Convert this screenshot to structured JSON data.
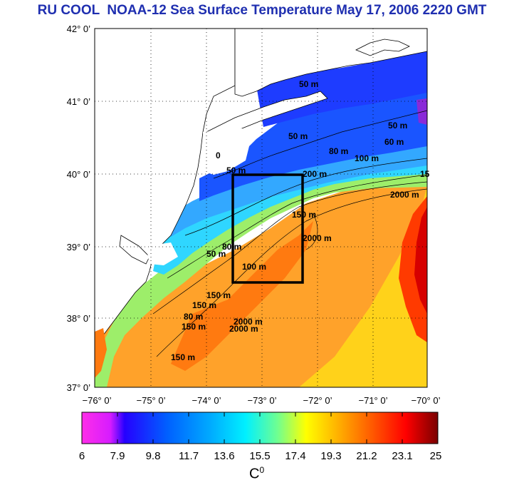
{
  "title": "RU COOL  NOAA-12 Sea Surface Temperature May 17, 2006 2220 GMT",
  "map": {
    "lon_range": [
      -76,
      -70
    ],
    "lat_range": [
      37,
      42
    ],
    "lon_ticks": [
      "−76° 0’",
      "−75° 0’",
      "−74° 0’",
      "−73° 0’",
      "−72° 0’",
      "−71° 0’",
      "−70° 0’"
    ],
    "lat_ticks": [
      "42° 0’",
      "41° 0’",
      "40° 0’",
      "39° 0’",
      "38° 0’",
      "37° 0’"
    ],
    "region_box": {
      "lon": [
        -73.5,
        -72.3
      ],
      "lat": [
        38.5,
        40.0
      ]
    },
    "contour_labels": [
      "50 m",
      "50 m",
      "80 m",
      "100 m",
      "60 m",
      "50 m",
      "200 m",
      "2000 m",
      "2000 m",
      "150 m",
      "50 m",
      "100 m",
      "150 m",
      "2000 m",
      "150 m",
      "80 m",
      "80 m",
      "150 m",
      "2000 m",
      "50 m",
      "150 m",
      "15",
      "0"
    ]
  },
  "colorbar": {
    "ticks": [
      "6",
      "7.9",
      "9.8",
      "11.7",
      "13.6",
      "15.5",
      "17.4",
      "19.3",
      "21.2",
      "23.1",
      "25"
    ],
    "unit_base": "C",
    "unit_sup": "0",
    "min": 6,
    "max": 25
  },
  "colors": {
    "title": "#1f2fb0",
    "land": "#ffffff",
    "box": "#000000"
  }
}
